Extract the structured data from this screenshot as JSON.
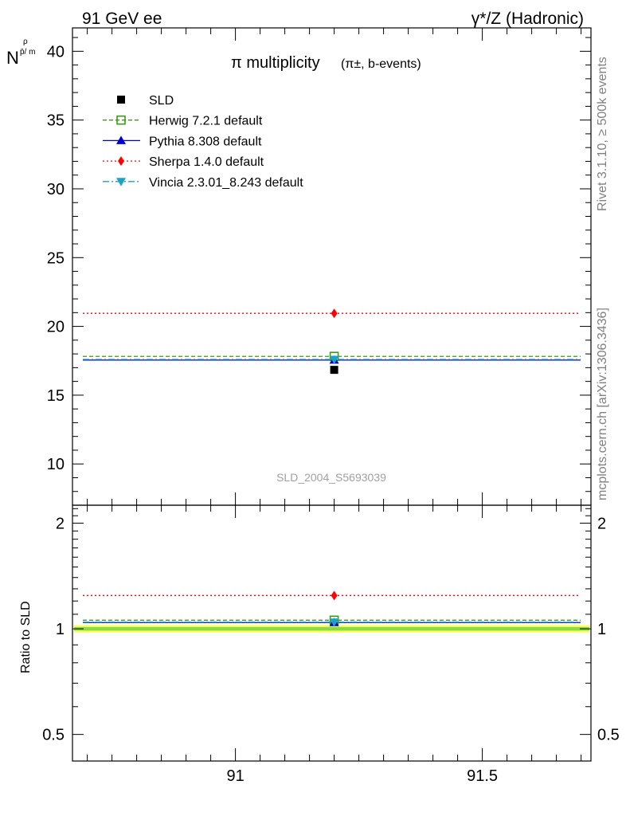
{
  "header": {
    "left": "91 GeV ee",
    "right": "γ*/Z (Hadronic)"
  },
  "side_text": {
    "rivet": "Rivet 3.1.10, ≥ 500k events",
    "mcplots": "mcplots.cern.ch [arXiv:1306.3436]"
  },
  "chart_data": {
    "type": "scatter",
    "title": "π multiplicity",
    "title_sub": "(π±, b-events)",
    "ylabel_main": "N",
    "ylabel_sub": "p̄/ m",
    "ylabel_sup": "ρ",
    "ylabel_ratio": "Ratio to SLD",
    "watermark": "SLD_2004_S5693039",
    "x_range": [
      90.67,
      91.72
    ],
    "x_bin": [
      90.67,
      91.72
    ],
    "x_center": 91.2,
    "x_ticks": [
      "91",
      "91.5"
    ],
    "x_tick_values": [
      91,
      91.5
    ],
    "main_ylim": [
      7.0,
      41.7
    ],
    "main_yticks": [
      "10",
      "15",
      "20",
      "25",
      "30",
      "35",
      "40"
    ],
    "main_ytick_values": [
      10,
      15,
      20,
      25,
      30,
      35,
      40
    ],
    "ratio_ylim": [
      0.42,
      2.25
    ],
    "ratio_yticks": [
      "0.5",
      "1",
      "2"
    ],
    "ratio_ytick_values": [
      0.5,
      1,
      2
    ],
    "legend_placement": "top-left",
    "data": {
      "name": "SLD",
      "value": 16.84,
      "color": "#000000",
      "marker": "square"
    },
    "series": [
      {
        "name": "Herwig 7.2.1 default",
        "value": 17.82,
        "ratio": 1.058,
        "color": "#3a9b14",
        "marker": "open-square",
        "dash": "dashed"
      },
      {
        "name": "Pythia 8.308 default",
        "value": 17.55,
        "ratio": 1.042,
        "color": "#0000cc",
        "marker": "triangle-up",
        "dash": "solid"
      },
      {
        "name": "Sherpa 1.4.0 default",
        "value": 20.95,
        "ratio": 1.244,
        "color": "#ff0000",
        "marker": "diamond",
        "dash": "dotted"
      },
      {
        "name": "Vincia 2.3.01_8.243 default",
        "value": 17.6,
        "ratio": 1.045,
        "color": "#1ca3c4",
        "marker": "triangle-down",
        "dash": "dashdot"
      }
    ],
    "ratio_band": {
      "low": 0.975,
      "high": 1.025,
      "color_outer": "#ffff66",
      "color_inner": "#88dd44"
    }
  }
}
